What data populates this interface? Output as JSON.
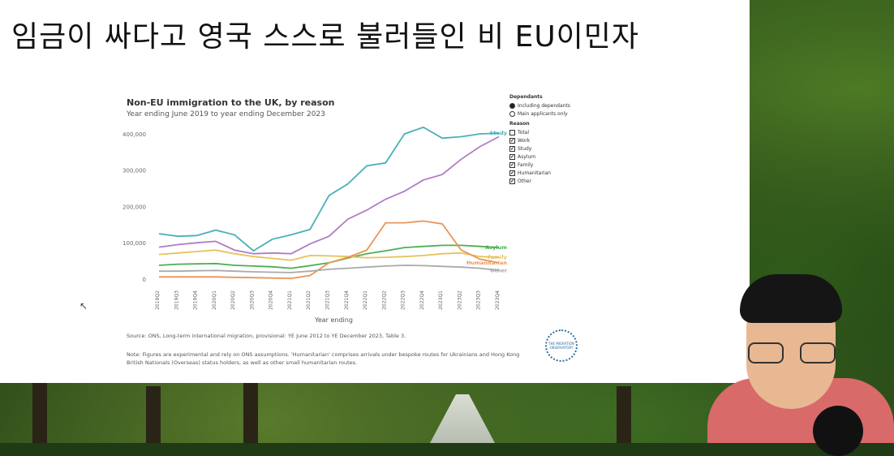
{
  "headline": "임금이 싸다고 영국 스스로 불러들인 비 EU이민자",
  "chart_data": {
    "type": "line",
    "title": "Non-EU immigration to the UK, by reason",
    "subtitle": "Year ending June 2019 to year ending December 2023",
    "xlabel": "Year ending",
    "ylabel": "",
    "ylim": [
      0,
      420000
    ],
    "y_ticks": [
      "0",
      "100,000",
      "200,000",
      "300,000",
      "400,000"
    ],
    "y_tick_values": [
      0,
      100000,
      200000,
      300000,
      400000
    ],
    "categories": [
      "2019Q2",
      "2019Q3",
      "2019Q4",
      "2020Q1",
      "2020Q2",
      "2020Q3",
      "2020Q4",
      "2021Q1",
      "2021Q2",
      "2021Q3",
      "2021Q4",
      "2022Q1",
      "2022Q2",
      "2022Q3",
      "2022Q4",
      "2023Q1",
      "2023Q2",
      "2023Q3",
      "2023Q4"
    ],
    "series": [
      {
        "name": "Study",
        "color": "#4bb0b8",
        "values": [
          125000,
          118000,
          120000,
          135000,
          122000,
          78000,
          110000,
          122000,
          137000,
          230000,
          262000,
          312000,
          320000,
          400000,
          418000,
          388000,
          392000,
          400000,
          402000
        ]
      },
      {
        "name": "",
        "color": "#b07cc6",
        "values": [
          88000,
          95000,
          100000,
          104000,
          80000,
          70000,
          72000,
          70000,
          97000,
          118000,
          165000,
          190000,
          220000,
          242000,
          273000,
          288000,
          330000,
          365000,
          392000
        ]
      },
      {
        "name": "Asylum",
        "color": "#4caf50",
        "values": [
          38000,
          41000,
          42000,
          43000,
          38000,
          36000,
          34000,
          30000,
          37000,
          45000,
          58000,
          70000,
          78000,
          87000,
          90000,
          93000,
          93000,
          90000,
          87000
        ]
      },
      {
        "name": "Family",
        "color": "#e6c35a",
        "values": [
          68000,
          72000,
          76000,
          80000,
          70000,
          62000,
          57000,
          52000,
          65000,
          64000,
          62000,
          59000,
          60000,
          62000,
          65000,
          70000,
          72000,
          62000,
          60000
        ]
      },
      {
        "name": "Humanitarian",
        "color": "#e8955a",
        "values": [
          6000,
          6000,
          6000,
          6000,
          5000,
          4000,
          3000,
          2000,
          10000,
          45000,
          60000,
          80000,
          155000,
          155000,
          160000,
          152000,
          80000,
          55000,
          45000
        ]
      },
      {
        "name": "Other",
        "color": "#aaaaaa",
        "values": [
          22000,
          22000,
          23000,
          24000,
          22000,
          20000,
          19000,
          18000,
          22000,
          27000,
          30000,
          33000,
          36000,
          38000,
          37000,
          35000,
          33000,
          30000,
          24000
        ]
      }
    ],
    "legend_panel": {
      "dependants_title": "Dependants",
      "dependants_options": [
        {
          "label": "Including dependants",
          "selected": true
        },
        {
          "label": "Main applicants only",
          "selected": false
        }
      ],
      "reason_title": "Reason",
      "reason_options": [
        {
          "label": "Total",
          "checked": false
        },
        {
          "label": "Work",
          "checked": true
        },
        {
          "label": "Study",
          "checked": true
        },
        {
          "label": "Asylum",
          "checked": true
        },
        {
          "label": "Family",
          "checked": true
        },
        {
          "label": "Humanitarian",
          "checked": true
        },
        {
          "label": "Other",
          "checked": true
        }
      ]
    }
  },
  "source": "Source: ONS, Long-term international migration, provisional: YE June 2012 to YE December 2023, Table 3.",
  "note": "Note: Figures are experimental and rely on ONS assumptions. 'Humanitarian' comprises arrivals under bespoke routes for Ukrainians and Hong Kong British Nationals (Overseas) status holders, as well as other small humanitarian routes.",
  "logo_text": "THE MIGRATION OBSERVATORY"
}
